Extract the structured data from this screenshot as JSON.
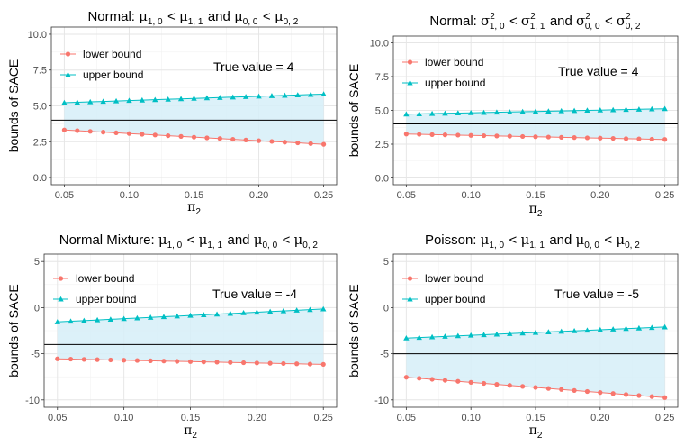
{
  "colors": {
    "lower": "#F8766D",
    "upper": "#00BFC4",
    "band": "#D6EEF8",
    "grid_major": "#E6E6E6",
    "grid_minor": "#F2F2F2",
    "true_line": "#000000"
  },
  "chart_data": [
    {
      "type": "line",
      "title": "Normal: μ1, 0 < μ1, 1 and μ0, 0 < μ0, 2",
      "title_parts": {
        "prefix": "Normal: ",
        "a": "μ",
        "a_sub": "1, 0",
        "b": "μ",
        "b_sub": "1, 1",
        "and": " and ",
        "c": "μ",
        "c_sub": "0, 0",
        "d": "μ",
        "d_sub": "0, 2"
      },
      "xlabel": "π2",
      "xlabel_parts": {
        "base": "π",
        "sub": "2"
      },
      "ylabel": "bounds of SACE",
      "xlim": [
        0.04,
        0.26
      ],
      "ylim": [
        -0.5,
        10.5
      ],
      "x_ticks": [
        0.05,
        0.1,
        0.15,
        0.2,
        0.25
      ],
      "x_tick_labels": [
        "0.05",
        "0.10",
        "0.15",
        "0.20",
        "0.25"
      ],
      "y_ticks": [
        0,
        2.5,
        5,
        7.5,
        10
      ],
      "y_tick_labels": [
        "0.0",
        "2.5",
        "5.0",
        "7.5",
        "10.0"
      ],
      "x": [
        0.05,
        0.06,
        0.07,
        0.08,
        0.09,
        0.1,
        0.11,
        0.12,
        0.13,
        0.14,
        0.15,
        0.16,
        0.17,
        0.18,
        0.19,
        0.2,
        0.21,
        0.22,
        0.23,
        0.24,
        0.25
      ],
      "series": [
        {
          "name": "lower bound",
          "values": [
            3.32,
            3.27,
            3.22,
            3.17,
            3.12,
            3.07,
            3.02,
            2.97,
            2.92,
            2.87,
            2.82,
            2.77,
            2.72,
            2.67,
            2.62,
            2.57,
            2.52,
            2.47,
            2.42,
            2.37,
            2.32
          ]
        },
        {
          "name": "upper bound",
          "values": [
            5.22,
            5.25,
            5.28,
            5.31,
            5.34,
            5.37,
            5.4,
            5.43,
            5.46,
            5.49,
            5.52,
            5.55,
            5.58,
            5.61,
            5.64,
            5.67,
            5.7,
            5.73,
            5.76,
            5.79,
            5.82
          ]
        }
      ],
      "true_value": 4,
      "annotation": "True value = 4",
      "legend": [
        "lower bound",
        "upper bound"
      ],
      "legend_position": "top-left"
    },
    {
      "type": "line",
      "title": "Normal: σ²1, 0 < σ²1, 1 and σ²0, 0 < σ²0, 2",
      "title_parts": {
        "prefix": "Normal: ",
        "a": "σ",
        "a_sup": "2",
        "a_sub": "1, 0",
        "b": "σ",
        "b_sup": "2",
        "b_sub": "1, 1",
        "and": " and ",
        "c": "σ",
        "c_sup": "2",
        "c_sub": "0, 0",
        "d": "σ",
        "d_sup": "2",
        "d_sub": "0, 2"
      },
      "xlabel": "π2",
      "xlabel_parts": {
        "base": "π",
        "sub": "2"
      },
      "ylabel": "bounds of SACE",
      "xlim": [
        0.04,
        0.26
      ],
      "ylim": [
        -0.5,
        10.5
      ],
      "x_ticks": [
        0.05,
        0.1,
        0.15,
        0.2,
        0.25
      ],
      "x_tick_labels": [
        "0.05",
        "0.10",
        "0.15",
        "0.20",
        "0.25"
      ],
      "y_ticks": [
        0,
        2.5,
        5,
        7.5,
        10
      ],
      "y_tick_labels": [
        "0.0",
        "2.5",
        "5.0",
        "7.5",
        "10.0"
      ],
      "x": [
        0.05,
        0.06,
        0.07,
        0.08,
        0.09,
        0.1,
        0.11,
        0.12,
        0.13,
        0.14,
        0.15,
        0.16,
        0.17,
        0.18,
        0.19,
        0.2,
        0.21,
        0.22,
        0.23,
        0.24,
        0.25
      ],
      "series": [
        {
          "name": "lower bound",
          "values": [
            3.25,
            3.23,
            3.21,
            3.19,
            3.17,
            3.15,
            3.13,
            3.11,
            3.09,
            3.07,
            3.05,
            3.03,
            3.01,
            2.99,
            2.97,
            2.95,
            2.93,
            2.91,
            2.89,
            2.87,
            2.85
          ]
        },
        {
          "name": "upper bound",
          "values": [
            4.72,
            4.74,
            4.76,
            4.78,
            4.8,
            4.82,
            4.84,
            4.86,
            4.88,
            4.9,
            4.92,
            4.94,
            4.96,
            4.98,
            5.0,
            5.02,
            5.04,
            5.06,
            5.08,
            5.1,
            5.12
          ]
        }
      ],
      "true_value": 4,
      "annotation": "True value = 4",
      "legend": [
        "lower bound",
        "upper bound"
      ],
      "legend_position": "top-left"
    },
    {
      "type": "line",
      "title": "Normal Mixture: μ1, 0 < μ1, 1 and μ0, 0 < μ0, 2",
      "title_parts": {
        "prefix": "Normal Mixture: ",
        "a": "μ",
        "a_sub": "1, 0",
        "b": "μ",
        "b_sub": "1, 1",
        "and": " and ",
        "c": "μ",
        "c_sub": "0, 0",
        "d": "μ",
        "d_sub": "0, 2"
      },
      "xlabel": "π2",
      "xlabel_parts": {
        "base": "π",
        "sub": "2"
      },
      "ylabel": "bounds of SACE",
      "xlim": [
        0.04,
        0.26
      ],
      "ylim": [
        -10.8,
        5.8
      ],
      "x_ticks": [
        0.05,
        0.1,
        0.15,
        0.2,
        0.25
      ],
      "x_tick_labels": [
        "0.05",
        "0.10",
        "0.15",
        "0.20",
        "0.25"
      ],
      "y_ticks": [
        -10,
        -5,
        0,
        5
      ],
      "y_tick_labels": [
        "-10",
        "-5",
        "0",
        "5"
      ],
      "x": [
        0.05,
        0.06,
        0.07,
        0.08,
        0.09,
        0.1,
        0.11,
        0.12,
        0.13,
        0.14,
        0.15,
        0.16,
        0.17,
        0.18,
        0.19,
        0.2,
        0.21,
        0.22,
        0.23,
        0.24,
        0.25
      ],
      "series": [
        {
          "name": "lower bound",
          "values": [
            -5.55,
            -5.58,
            -5.61,
            -5.64,
            -5.67,
            -5.7,
            -5.73,
            -5.76,
            -5.79,
            -5.82,
            -5.85,
            -5.88,
            -5.91,
            -5.94,
            -5.97,
            -6.0,
            -6.03,
            -6.06,
            -6.09,
            -6.12,
            -6.15
          ]
        },
        {
          "name": "upper bound",
          "values": [
            -1.55,
            -1.48,
            -1.41,
            -1.34,
            -1.27,
            -1.2,
            -1.13,
            -1.06,
            -0.99,
            -0.92,
            -0.85,
            -0.78,
            -0.71,
            -0.64,
            -0.57,
            -0.5,
            -0.43,
            -0.36,
            -0.29,
            -0.22,
            -0.15
          ]
        }
      ],
      "true_value": -4,
      "annotation": "True value = -4",
      "legend": [
        "lower bound",
        "upper bound"
      ],
      "legend_position": "top-left"
    },
    {
      "type": "line",
      "title": "Poisson: μ1, 0 < μ1, 1 and μ0, 0 < μ0, 2",
      "title_parts": {
        "prefix": "Poisson: ",
        "a": "μ",
        "a_sub": "1, 0",
        "b": "μ",
        "b_sub": "1, 1",
        "and": " and ",
        "c": "μ",
        "c_sub": "0, 0",
        "d": "μ",
        "d_sub": "0, 2"
      },
      "xlabel": "π2",
      "xlabel_parts": {
        "base": "π",
        "sub": "2"
      },
      "ylabel": "bounds of SACE",
      "xlim": [
        0.04,
        0.26
      ],
      "ylim": [
        -10.8,
        5.8
      ],
      "x_ticks": [
        0.05,
        0.1,
        0.15,
        0.2,
        0.25
      ],
      "x_tick_labels": [
        "0.05",
        "0.10",
        "0.15",
        "0.20",
        "0.25"
      ],
      "y_ticks": [
        -10,
        -5,
        0,
        5
      ],
      "y_tick_labels": [
        "-10",
        "-5",
        "0",
        "5"
      ],
      "x": [
        0.05,
        0.06,
        0.07,
        0.08,
        0.09,
        0.1,
        0.11,
        0.12,
        0.13,
        0.14,
        0.15,
        0.16,
        0.17,
        0.18,
        0.19,
        0.2,
        0.21,
        0.22,
        0.23,
        0.24,
        0.25
      ],
      "series": [
        {
          "name": "lower bound",
          "values": [
            -7.55,
            -7.66,
            -7.77,
            -7.88,
            -7.99,
            -8.1,
            -8.21,
            -8.32,
            -8.43,
            -8.54,
            -8.65,
            -8.76,
            -8.87,
            -8.98,
            -9.09,
            -9.2,
            -9.31,
            -9.42,
            -9.53,
            -9.64,
            -9.75
          ]
        },
        {
          "name": "upper bound",
          "values": [
            -3.3,
            -3.24,
            -3.18,
            -3.12,
            -3.06,
            -3.0,
            -2.94,
            -2.88,
            -2.82,
            -2.76,
            -2.7,
            -2.64,
            -2.58,
            -2.52,
            -2.46,
            -2.4,
            -2.34,
            -2.28,
            -2.22,
            -2.16,
            -2.1
          ]
        }
      ],
      "true_value": -5,
      "annotation": "True value = -5",
      "legend": [
        "lower bound",
        "upper bound"
      ],
      "legend_position": "top-left"
    }
  ]
}
